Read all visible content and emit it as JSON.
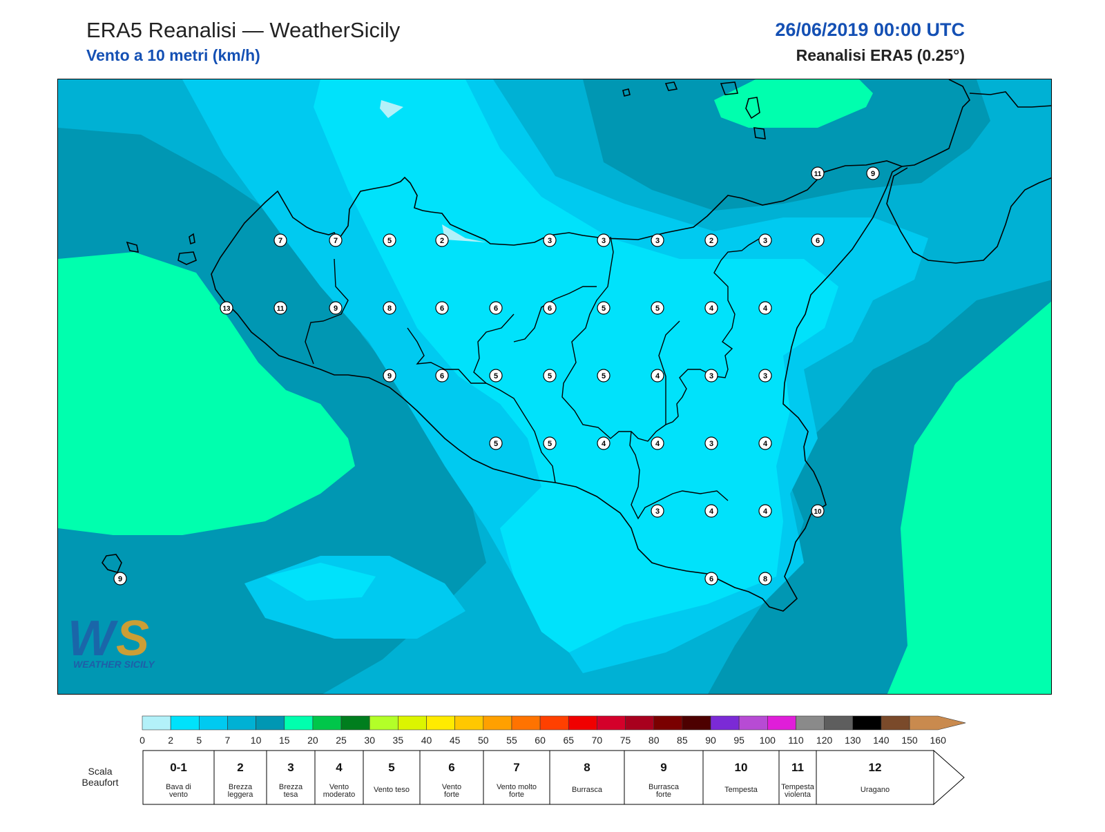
{
  "header": {
    "title": "ERA5 Reanalisi — WeatherSicily",
    "subtitle": "Vento a 10 metri (km/h)",
    "datetime": "26/06/2019 00:00 UTC",
    "source": "Reanalisi ERA5 (0.25°)"
  },
  "palette": {
    "band_0_2": "#b3f1f9",
    "band_2_5": "#00e2fb",
    "band_5_7": "#00caf0",
    "band_7_10": "#00b1d4",
    "band_10_15": "#0097b3",
    "band_15_20": "#00ffae",
    "coast_color": "#000000"
  },
  "stations": [
    {
      "v": "11"
    },
    {
      "v": "9"
    },
    {
      "v": "7"
    },
    {
      "v": "7"
    },
    {
      "v": "5"
    },
    {
      "v": "2"
    },
    {
      "v": "3"
    },
    {
      "v": "3"
    },
    {
      "v": "3"
    },
    {
      "v": "2"
    },
    {
      "v": "3"
    },
    {
      "v": "6"
    },
    {
      "v": "13"
    },
    {
      "v": "11"
    },
    {
      "v": "9"
    },
    {
      "v": "8"
    },
    {
      "v": "6"
    },
    {
      "v": "6"
    },
    {
      "v": "6"
    },
    {
      "v": "5"
    },
    {
      "v": "5"
    },
    {
      "v": "4"
    },
    {
      "v": "4"
    },
    {
      "v": "9"
    },
    {
      "v": "6"
    },
    {
      "v": "5"
    },
    {
      "v": "5"
    },
    {
      "v": "5"
    },
    {
      "v": "4"
    },
    {
      "v": "3"
    },
    {
      "v": "3"
    },
    {
      "v": "5"
    },
    {
      "v": "5"
    },
    {
      "v": "4"
    },
    {
      "v": "4"
    },
    {
      "v": "3"
    },
    {
      "v": "4"
    },
    {
      "v": "3"
    },
    {
      "v": "4"
    },
    {
      "v": "4"
    },
    {
      "v": "10"
    },
    {
      "v": "6"
    },
    {
      "v": "8"
    },
    {
      "v": "9"
    }
  ],
  "colorbar": {
    "ticks": [
      "0",
      "2",
      "5",
      "7",
      "10",
      "15",
      "20",
      "25",
      "30",
      "35",
      "40",
      "45",
      "50",
      "55",
      "60",
      "65",
      "70",
      "75",
      "80",
      "85",
      "90",
      "95",
      "100",
      "110",
      "120",
      "130",
      "140",
      "150",
      "160"
    ],
    "colors": [
      "#b3f1f9",
      "#00e2fb",
      "#00caf0",
      "#00b1d4",
      "#0097b3",
      "#00ffae",
      "#00c64a",
      "#007e1e",
      "#b3ff28",
      "#dcf500",
      "#ffeb00",
      "#ffc800",
      "#ffa000",
      "#ff7300",
      "#ff4000",
      "#f00000",
      "#d4002a",
      "#a8001e",
      "#7a0000",
      "#4d0000",
      "#7b2ad6",
      "#b74bd4",
      "#e01ed9",
      "#8a8a8a",
      "#5e5e5e",
      "#000000",
      "#7a4a2a",
      "#c98a4e"
    ]
  },
  "beaufort": {
    "label_line1": "Scala",
    "label_line2": "Beaufort",
    "cells": [
      {
        "num": "0-1",
        "d1": "Bava di",
        "d2": "vento"
      },
      {
        "num": "2",
        "d1": "Brezza",
        "d2": "leggera"
      },
      {
        "num": "3",
        "d1": "Brezza",
        "d2": "tesa"
      },
      {
        "num": "4",
        "d1": "Vento",
        "d2": "moderato"
      },
      {
        "num": "5",
        "d1": "Vento teso",
        "d2": ""
      },
      {
        "num": "6",
        "d1": "Vento",
        "d2": "forte"
      },
      {
        "num": "7",
        "d1": "Vento molto",
        "d2": "forte"
      },
      {
        "num": "8",
        "d1": "Burrasca",
        "d2": ""
      },
      {
        "num": "9",
        "d1": "Burrasca",
        "d2": "forte"
      },
      {
        "num": "10",
        "d1": "Tempesta",
        "d2": ""
      },
      {
        "num": "11",
        "d1": "Tempesta",
        "d2": "violenta"
      },
      {
        "num": "12",
        "d1": "Uragano",
        "d2": ""
      }
    ]
  },
  "logo": {
    "text": "WEATHER SICILY"
  }
}
